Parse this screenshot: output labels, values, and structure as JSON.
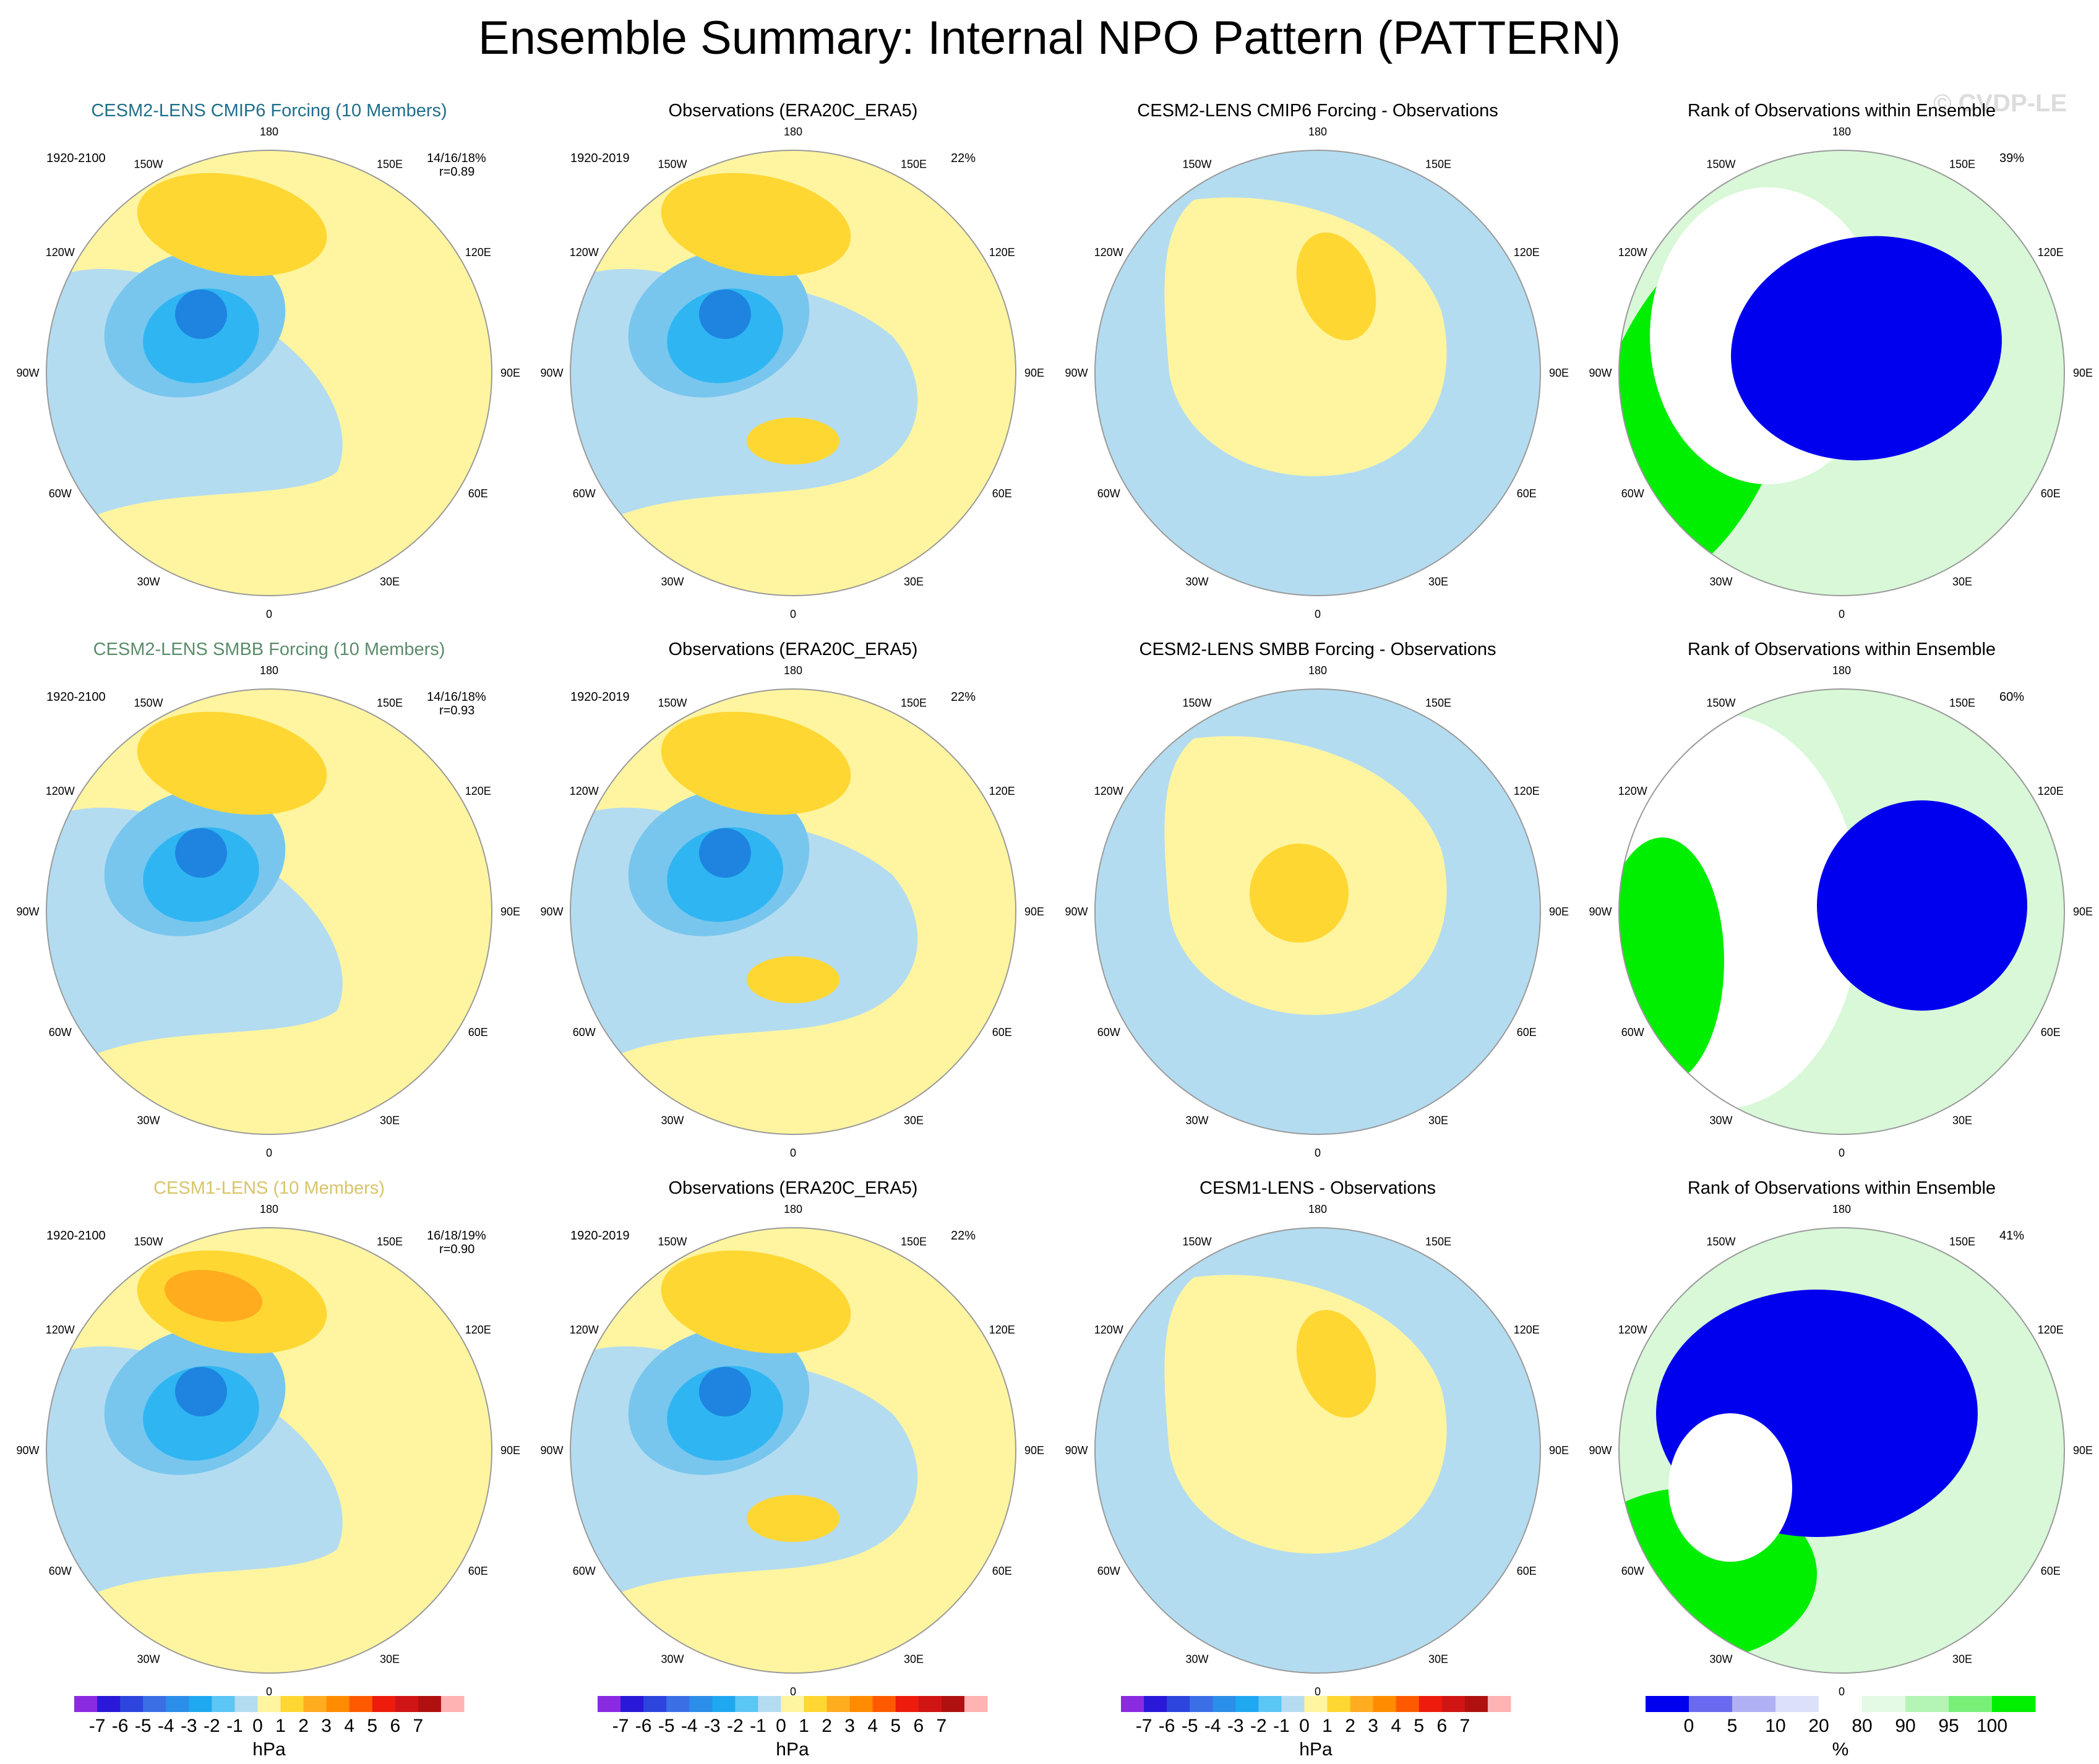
{
  "title": "Ensemble Summary: Internal NPO Pattern (PATTERN)",
  "watermark": "© CVDP-LE",
  "colors": {
    "model_title_row1": "#1f6f8b",
    "model_title_row2": "#5b8c6a",
    "model_title_row3": "#d8c46a",
    "ocean_neg1": "#b4dcf0",
    "neg2": "#78c6ee",
    "neg3": "#2fb6f2",
    "neg4": "#1e84e0",
    "pos1": "#fff5a0",
    "pos2": "#ffd733",
    "pos3": "#ffac1f",
    "rank_low": "#0000ee",
    "rank_mid": "#ffffff",
    "rank_high": "#00ee00",
    "rank_lightgreen": "#d8f8d8",
    "rank_lightblue": "#dce0f8"
  },
  "longitude_labels": [
    "180",
    "150E",
    "120E",
    "90E",
    "60E",
    "30E",
    "0",
    "30W",
    "60W",
    "90W",
    "120W",
    "150W"
  ],
  "rows": [
    {
      "model": {
        "title": "CESM2-LENS CMIP6 Forcing (10 Members)",
        "period": "1920-2100",
        "pct": "14/16/18%",
        "r": "r=0.89"
      },
      "obs": {
        "title": "Observations (ERA20C_ERA5)",
        "period": "1920-2019",
        "pct": "22%"
      },
      "diff": {
        "title": "CESM2-LENS CMIP6 Forcing - Observations"
      },
      "rank": {
        "title": "Rank of Observations within Ensemble",
        "pct": "39%"
      }
    },
    {
      "model": {
        "title": "CESM2-LENS SMBB Forcing (10 Members)",
        "period": "1920-2100",
        "pct": "14/16/18%",
        "r": "r=0.93"
      },
      "obs": {
        "title": "Observations (ERA20C_ERA5)",
        "period": "1920-2019",
        "pct": "22%"
      },
      "diff": {
        "title": "CESM2-LENS SMBB Forcing - Observations"
      },
      "rank": {
        "title": "Rank of Observations within Ensemble",
        "pct": "60%"
      }
    },
    {
      "model": {
        "title": "CESM1-LENS (10 Members)",
        "period": "1920-2100",
        "pct": "16/18/19%",
        "r": "r=0.90"
      },
      "obs": {
        "title": "Observations (ERA20C_ERA5)",
        "period": "1920-2019",
        "pct": "22%"
      },
      "diff": {
        "title": "CESM1-LENS - Observations"
      },
      "rank": {
        "title": "Rank of Observations within Ensemble",
        "pct": "41%"
      }
    }
  ],
  "hpa_colorbar": {
    "unit": "hPa",
    "ticks": [
      "-7",
      "-6",
      "-5",
      "-4",
      "-3",
      "-2",
      "-1",
      "0",
      "1",
      "2",
      "3",
      "4",
      "5",
      "6",
      "7"
    ],
    "colors": [
      "#8a2be2",
      "#2a18d8",
      "#2d45dd",
      "#3a6fe6",
      "#2b8ee8",
      "#1fa8f0",
      "#5cc6f5",
      "#b4dcf0",
      "#fff5a0",
      "#ffd733",
      "#ffac1f",
      "#ff8c00",
      "#ff5a00",
      "#ee1c0c",
      "#d01414",
      "#b01010",
      "#ffb3b3"
    ]
  },
  "rank_colorbar": {
    "unit": "%",
    "ticks": [
      "0",
      "5",
      "10",
      "20",
      "80",
      "90",
      "95",
      "100"
    ],
    "colors": [
      "#0000ee",
      "#6a6af0",
      "#b0b0f4",
      "#dce0f8",
      "#ffffff",
      "#e4fae4",
      "#b4f4b4",
      "#78f078",
      "#00ee00"
    ]
  }
}
